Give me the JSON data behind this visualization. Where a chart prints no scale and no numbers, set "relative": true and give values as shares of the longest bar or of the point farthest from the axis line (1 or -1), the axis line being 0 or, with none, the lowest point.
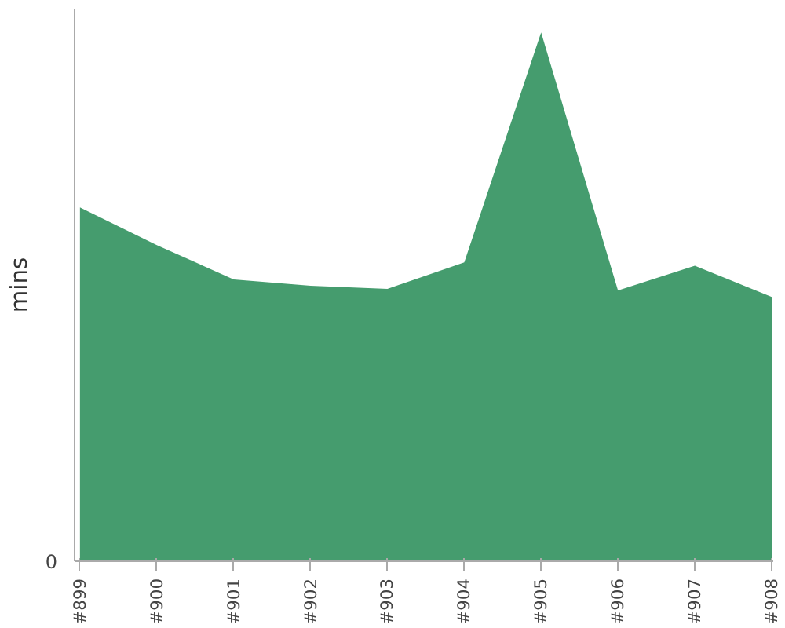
{
  "chart_data": {
    "type": "area",
    "ylabel": "mins",
    "relative": true,
    "categories": [
      "#899",
      "#900",
      "#901",
      "#902",
      "#903",
      "#904",
      "#905",
      "#906",
      "#907",
      "#908"
    ],
    "values": [
      0.669,
      0.598,
      0.533,
      0.521,
      0.515,
      0.565,
      1,
      0.512,
      0.559,
      0.5
    ],
    "color": "#459c6e",
    "annotations": [
      "0"
    ],
    "grid": false
  }
}
